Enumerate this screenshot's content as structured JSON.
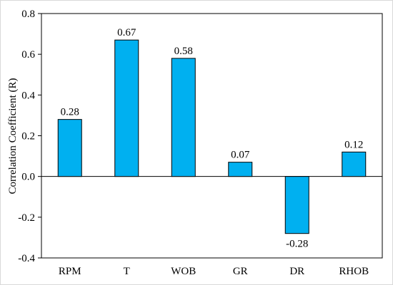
{
  "chart_data": {
    "type": "bar",
    "categories": [
      "RPM",
      "T",
      "WOB",
      "GR",
      "DR",
      "RHOB"
    ],
    "values": [
      0.28,
      0.67,
      0.58,
      0.07,
      -0.28,
      0.12
    ],
    "data_labels": [
      "0.28",
      "0.67",
      "0.58",
      "0.07",
      "-0.28",
      "0.12"
    ],
    "title": "",
    "xlabel": "",
    "ylabel": "Correlation Coefficient (R)",
    "ylim": [
      -0.4,
      0.8
    ],
    "yticks": [
      -0.4,
      -0.2,
      0.0,
      0.2,
      0.4,
      0.6,
      0.8
    ],
    "ytick_labels": [
      "-0.4",
      "-0.2",
      "0.0",
      "0.2",
      "0.4",
      "0.6",
      "0.8"
    ],
    "grid": false,
    "legend": "none",
    "bar_color": "#00B0F0",
    "bar_edge_color": "#000000"
  }
}
